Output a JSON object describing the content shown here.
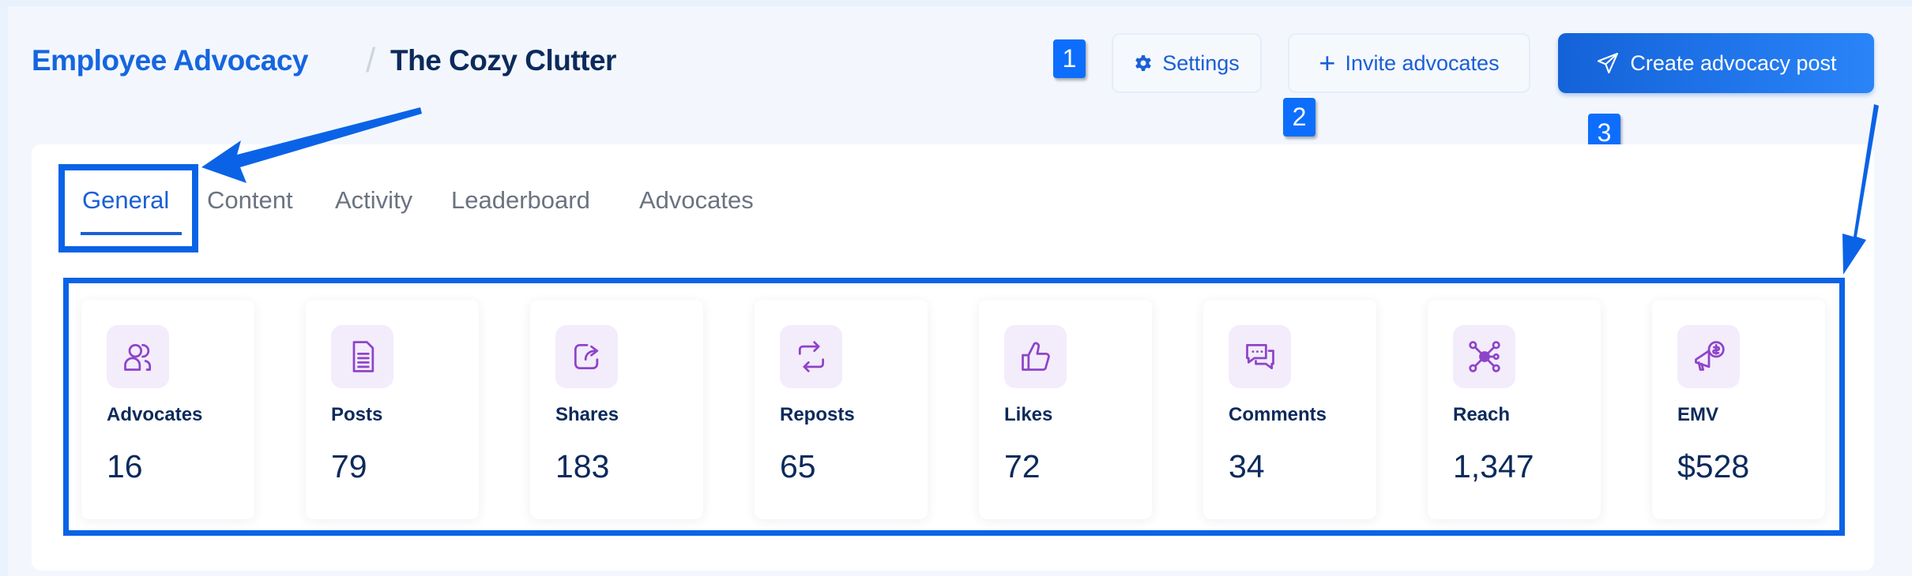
{
  "breadcrumb": {
    "root": "Employee Advocacy",
    "separator": "/",
    "current": "The Cozy Clutter"
  },
  "buttons": {
    "settings": "Settings",
    "invite": "Invite advocates",
    "create": "Create advocacy post"
  },
  "annotations": {
    "b1": "1",
    "b2": "2",
    "b3": "3"
  },
  "tabs": [
    "General",
    "Content",
    "Activity",
    "Leaderboard",
    "Advocates"
  ],
  "stats": [
    {
      "label": "Advocates",
      "value": "16",
      "icon": "users-icon"
    },
    {
      "label": "Posts",
      "value": "79",
      "icon": "document-icon"
    },
    {
      "label": "Shares",
      "value": "183",
      "icon": "share-icon"
    },
    {
      "label": "Reposts",
      "value": "65",
      "icon": "repost-icon"
    },
    {
      "label": "Likes",
      "value": "72",
      "icon": "thumbs-up-icon"
    },
    {
      "label": "Comments",
      "value": "34",
      "icon": "comments-icon"
    },
    {
      "label": "Reach",
      "value": "1,347",
      "icon": "network-icon"
    },
    {
      "label": "EMV",
      "value": "$528",
      "icon": "megaphone-dollar-icon"
    }
  ],
  "colors": {
    "accent": "#1565e0",
    "navy": "#0c2a5b",
    "icon": "#8e44c9",
    "annotation": "#0a63e6"
  }
}
